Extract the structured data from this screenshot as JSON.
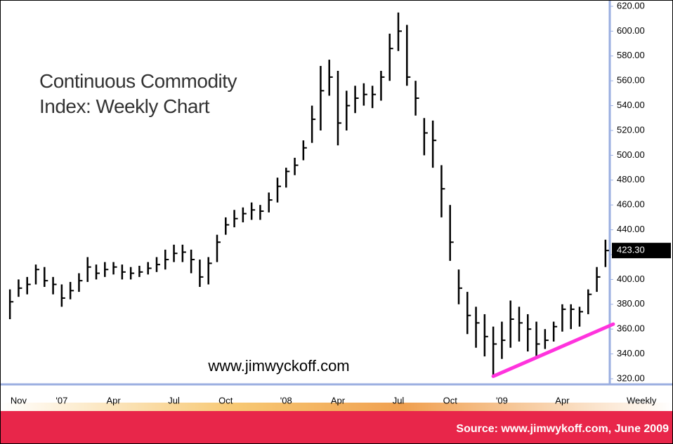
{
  "chart_data": {
    "type": "hlc",
    "title": "Continuous Commodity Index: Weekly Chart",
    "watermark": "www.jimwyckoff.com",
    "source": "Source:  www.jimwykoff.com, June 2009",
    "interval_label": "Weekly",
    "color": "#000000",
    "categories": [
      null,
      "Nov",
      null,
      null,
      null,
      null,
      "'07",
      null,
      null,
      null,
      null,
      null,
      "Apr",
      null,
      null,
      null,
      null,
      null,
      null,
      "Jul",
      null,
      null,
      null,
      null,
      null,
      "Oct",
      null,
      null,
      null,
      null,
      null,
      null,
      "'08",
      null,
      null,
      null,
      null,
      null,
      "Apr",
      null,
      null,
      null,
      null,
      null,
      null,
      "Jul",
      null,
      null,
      null,
      null,
      null,
      "Oct",
      null,
      null,
      null,
      null,
      null,
      "'09",
      null,
      null,
      null,
      null,
      null,
      null,
      "Apr",
      null,
      null,
      null,
      null,
      null
    ],
    "high": [
      392,
      400,
      402,
      412,
      410,
      402,
      396,
      398,
      405,
      418,
      412,
      414,
      414,
      412,
      410,
      411,
      414,
      418,
      424,
      428,
      428,
      424,
      416,
      418,
      436,
      450,
      456,
      458,
      462,
      460,
      470,
      482,
      490,
      498,
      512,
      540,
      572,
      577,
      568,
      552,
      556,
      558,
      556,
      568,
      598,
      615,
      605,
      560,
      530,
      528,
      492,
      460,
      408,
      390,
      378,
      372,
      362,
      366,
      383,
      378,
      372,
      366,
      360,
      366,
      380,
      380,
      378,
      392,
      410,
      432
    ],
    "low": [
      368,
      386,
      388,
      396,
      394,
      388,
      378,
      384,
      390,
      398,
      400,
      402,
      404,
      400,
      400,
      402,
      404,
      406,
      408,
      414,
      414,
      405,
      394,
      396,
      414,
      436,
      442,
      446,
      448,
      448,
      454,
      462,
      474,
      484,
      496,
      510,
      520,
      548,
      508,
      520,
      534,
      540,
      538,
      544,
      560,
      584,
      556,
      532,
      500,
      490,
      450,
      415,
      380,
      356,
      345,
      338,
      322,
      336,
      345,
      350,
      342,
      338,
      344,
      350,
      358,
      360,
      362,
      372,
      390,
      410
    ],
    "close": [
      382,
      393,
      396,
      408,
      399,
      396,
      385,
      391,
      399,
      410,
      405,
      408,
      410,
      406,
      405,
      406,
      409,
      412,
      416,
      421,
      422,
      416,
      402,
      413,
      430,
      444,
      449,
      453,
      456,
      455,
      464,
      475,
      487,
      492,
      506,
      529,
      552,
      563,
      526,
      540,
      546,
      549,
      549,
      563,
      586,
      600,
      563,
      546,
      518,
      512,
      473,
      430,
      393,
      371,
      365,
      354,
      348,
      351,
      368,
      365,
      360,
      348,
      351,
      362,
      376,
      376,
      374,
      388,
      402,
      423.3
    ],
    "last_value": 423.3,
    "last_value_label": "423.30",
    "trendline": {
      "color": "#ff33dd",
      "x": [
        56,
        69.9
      ],
      "values": [
        322,
        364
      ]
    },
    "ylim": [
      320,
      620
    ],
    "yticks": [
      {
        "value": 320,
        "label": "320.00"
      },
      {
        "value": 340,
        "label": "340.00"
      },
      {
        "value": 360,
        "label": "360.00"
      },
      {
        "value": 380,
        "label": "380.00"
      },
      {
        "value": 400,
        "label": "400.00"
      },
      {
        "value": 420,
        "label": "420.00"
      },
      {
        "value": 440,
        "label": "440.00"
      },
      {
        "value": 460,
        "label": "460.00"
      },
      {
        "value": 480,
        "label": "480.00"
      },
      {
        "value": 500,
        "label": "500.00"
      },
      {
        "value": 520,
        "label": "520.00"
      },
      {
        "value": 540,
        "label": "540.00"
      },
      {
        "value": 560,
        "label": "560.00"
      },
      {
        "value": 580,
        "label": "580.00"
      },
      {
        "value": 600,
        "label": "600.00"
      },
      {
        "value": 620,
        "label": "620.00"
      }
    ]
  }
}
